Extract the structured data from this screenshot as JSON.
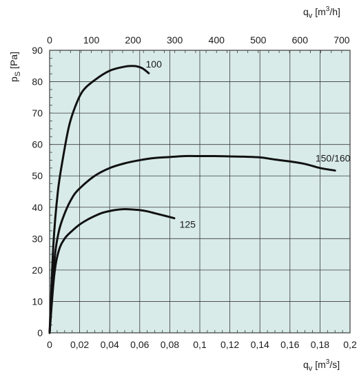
{
  "chart_data": {
    "type": "line",
    "colors": {
      "plot_background": "#d8ebe8",
      "grid": "#3a3a3a",
      "curve": "#111111"
    },
    "grid": true,
    "x_axis_bottom": {
      "label_main": "q",
      "label_sub": "v",
      "label_unit": "[m",
      "label_exp": "3",
      "label_tail": "/s]",
      "range": [
        0,
        0.2
      ],
      "ticks": [
        0,
        0.02,
        0.04,
        0.06,
        0.08,
        0.1,
        0.12,
        0.14,
        0.16,
        0.18,
        0.2
      ],
      "tick_labels": [
        "0",
        "0,02",
        "0,04",
        "0,06",
        "0,08",
        "0,1",
        "0,12",
        "0,14",
        "0,16",
        "0,18",
        "0,2"
      ]
    },
    "x_axis_top": {
      "label_main": "q",
      "label_sub": "v",
      "label_unit": "[m",
      "label_exp": "3",
      "label_tail": "/h]",
      "range": [
        0,
        720
      ],
      "ticks": [
        0,
        100,
        200,
        300,
        400,
        500,
        600,
        700
      ],
      "tick_labels": [
        "0",
        "100",
        "200",
        "300",
        "400",
        "500",
        "600",
        "700"
      ]
    },
    "y_axis": {
      "label_main": "p",
      "label_sub": "S",
      "label_unit": "[Pa]",
      "range": [
        0,
        90
      ],
      "ticks": [
        0,
        10,
        20,
        30,
        40,
        50,
        60,
        70,
        80,
        90
      ],
      "tick_labels": [
        "0",
        "10",
        "20",
        "30",
        "40",
        "50",
        "60",
        "70",
        "80",
        "90"
      ]
    },
    "series": [
      {
        "name": "100",
        "x": [
          0,
          0.0025,
          0.0055,
          0.009,
          0.013,
          0.017,
          0.022,
          0.03,
          0.04,
          0.05,
          0.055,
          0.058,
          0.062,
          0.066
        ],
        "y": [
          0,
          28,
          45,
          56,
          66,
          72,
          77,
          80.5,
          83.5,
          84.8,
          85,
          84.9,
          84.2,
          82.7
        ]
      },
      {
        "name": "150/160",
        "x": [
          0,
          0.003,
          0.006,
          0.01,
          0.015,
          0.02,
          0.03,
          0.04,
          0.05,
          0.06,
          0.07,
          0.08,
          0.09,
          0.1,
          0.11,
          0.12,
          0.13,
          0.14,
          0.15,
          0.16,
          0.17,
          0.18,
          0.19
        ],
        "y": [
          0,
          22,
          32,
          38,
          43,
          46,
          50,
          52.5,
          54,
          55,
          55.7,
          56,
          56.3,
          56.3,
          56.3,
          56.2,
          56.1,
          55.9,
          55.2,
          54.6,
          53.8,
          52.5,
          51.7
        ]
      },
      {
        "name": "125",
        "x": [
          0,
          0.003,
          0.006,
          0.01,
          0.015,
          0.02,
          0.025,
          0.03,
          0.035,
          0.04,
          0.045,
          0.05,
          0.055,
          0.06,
          0.065,
          0.07,
          0.075,
          0.08,
          0.083
        ],
        "y": [
          0,
          18,
          26,
          30,
          32.5,
          34.5,
          36,
          37.2,
          38.2,
          38.8,
          39.2,
          39.4,
          39.3,
          39.1,
          38.7,
          38.1,
          37.5,
          36.9,
          36.5
        ]
      }
    ],
    "series_labels": [
      {
        "text": "100",
        "x": 0.064,
        "y": 84.5
      },
      {
        "text": "150/160",
        "x": 0.177,
        "y": 54.5
      },
      {
        "text": "125",
        "x": 0.0865,
        "y": 33.5
      }
    ]
  }
}
